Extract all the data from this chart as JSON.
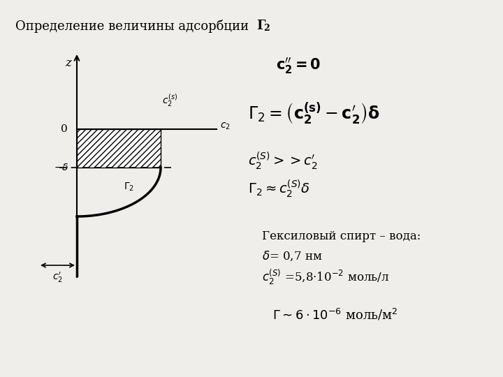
{
  "title": "Определение величины адсорбции ",
  "title_bold": "Г₂",
  "bg_color": "#f0eeea",
  "condition_text": "c₂’’ = 0",
  "info_line1": "Гексиловый спирт – вода:",
  "info_line2": "δ= 0,7 нм",
  "info_line3": "c₂(S) =5,8·10-2 моль/л",
  "result_line": "Γ ~ 6·10-6 моль/м2"
}
